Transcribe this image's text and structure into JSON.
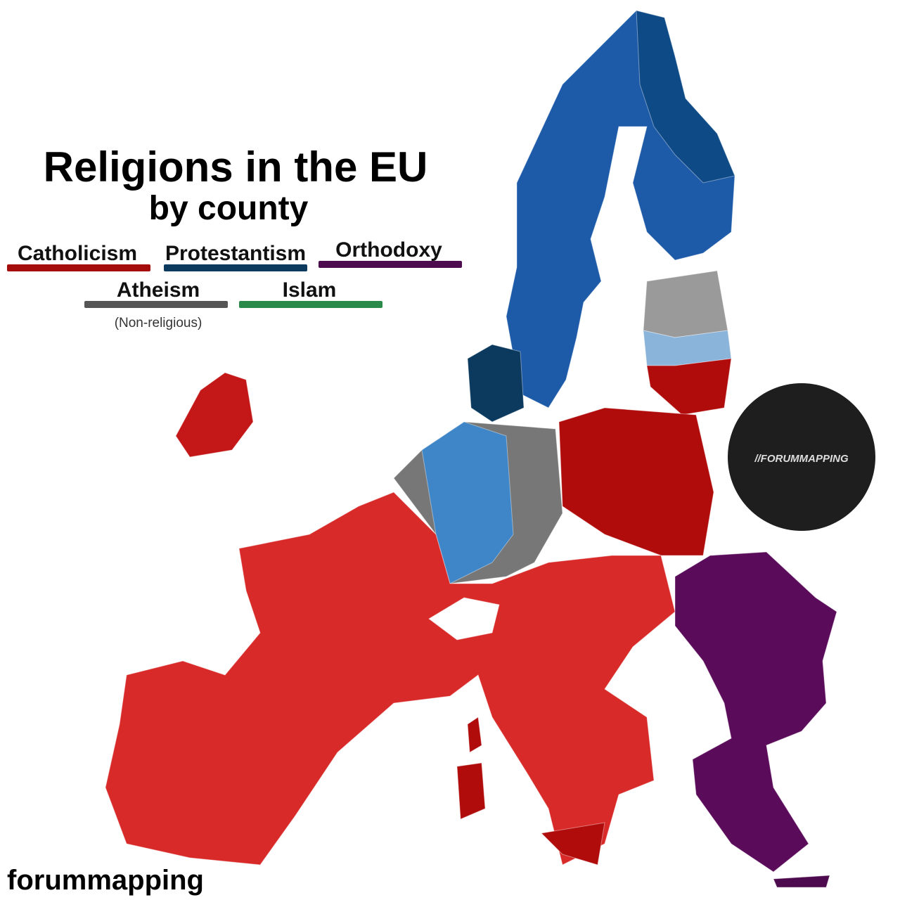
{
  "header": {
    "title": "Religions in the EU",
    "subtitle": "by county"
  },
  "legend": [
    {
      "label": "Catholicism",
      "color": "#a50d0d"
    },
    {
      "label": "Protestantism",
      "color": "#0b3a5e"
    },
    {
      "label": "Orthodoxy",
      "color": "#4e0a4e"
    },
    {
      "label": "Atheism",
      "color": "#555555",
      "note": "(Non-religious)"
    },
    {
      "label": "Islam",
      "color": "#2a8a4a"
    }
  ],
  "logo": {
    "text": "//FORUMMAPPING"
  },
  "footer": {
    "text": "forummapping"
  }
}
